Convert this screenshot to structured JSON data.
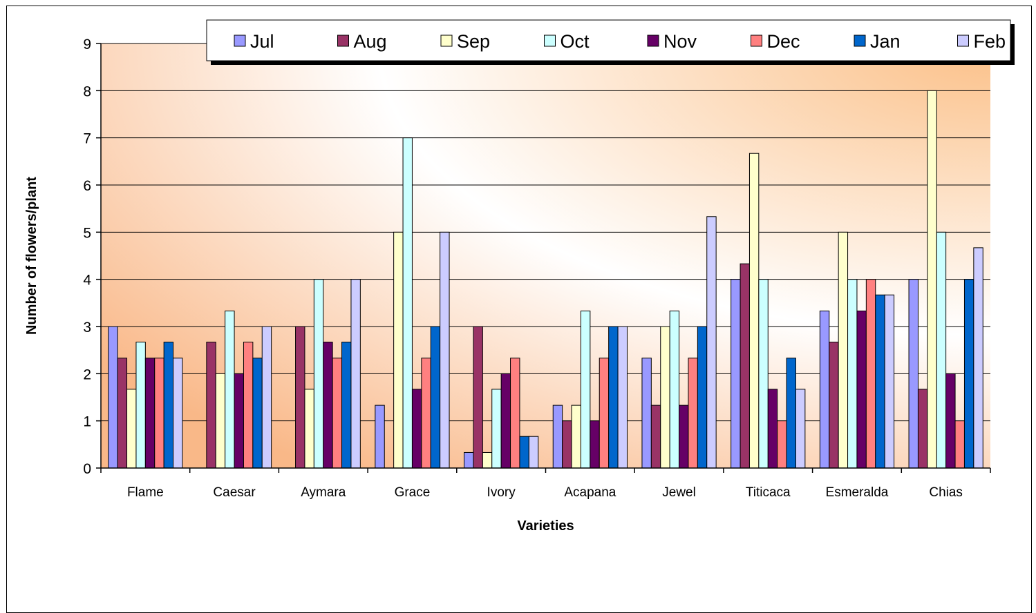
{
  "chart_data": {
    "type": "bar",
    "xlabel": "Varieties",
    "ylabel": "Number of flowers/plant",
    "ylim": [
      0,
      9
    ],
    "yticks": [
      0,
      1,
      2,
      3,
      4,
      5,
      6,
      7,
      8,
      9
    ],
    "grid": true,
    "legend_position": "top-right",
    "categories": [
      "Flame",
      "Caesar",
      "Aymara",
      "Grace",
      "Ivory",
      "Acapana",
      "Jewel",
      "Titicaca",
      "Esmeralda",
      "Chias"
    ],
    "series": [
      {
        "name": "Jul",
        "color": "#9999ff",
        "values": [
          3,
          0,
          0,
          1.33,
          0.33,
          1.33,
          2.33,
          4,
          3.33,
          4
        ]
      },
      {
        "name": "Aug",
        "color": "#993366",
        "values": [
          2.33,
          2.67,
          3,
          0,
          3,
          1,
          1.33,
          4.33,
          2.67,
          1.67
        ]
      },
      {
        "name": "Sep",
        "color": "#ffffcc",
        "values": [
          1.67,
          2,
          1.67,
          5,
          0.33,
          1.33,
          3,
          6.67,
          5,
          8
        ]
      },
      {
        "name": "Oct",
        "color": "#ccffff",
        "values": [
          2.67,
          3.33,
          4,
          7,
          1.67,
          3.33,
          3.33,
          4,
          4,
          5
        ]
      },
      {
        "name": "Nov",
        "color": "#660066",
        "values": [
          2.33,
          2,
          2.67,
          1.67,
          2,
          1,
          1.33,
          1.67,
          3.33,
          2
        ]
      },
      {
        "name": "Dec",
        "color": "#ff8080",
        "values": [
          2.33,
          2.67,
          2.33,
          2.33,
          2.33,
          2.33,
          2.33,
          1,
          4,
          1
        ]
      },
      {
        "name": "Jan",
        "color": "#0066cc",
        "values": [
          2.67,
          2.33,
          2.67,
          3,
          0.67,
          3,
          3,
          2.33,
          3.67,
          4
        ]
      },
      {
        "name": "Feb",
        "color": "#ccccff",
        "values": [
          2.33,
          3,
          4,
          5,
          0.67,
          3,
          5.33,
          1.67,
          3.67,
          4.67
        ]
      }
    ]
  }
}
